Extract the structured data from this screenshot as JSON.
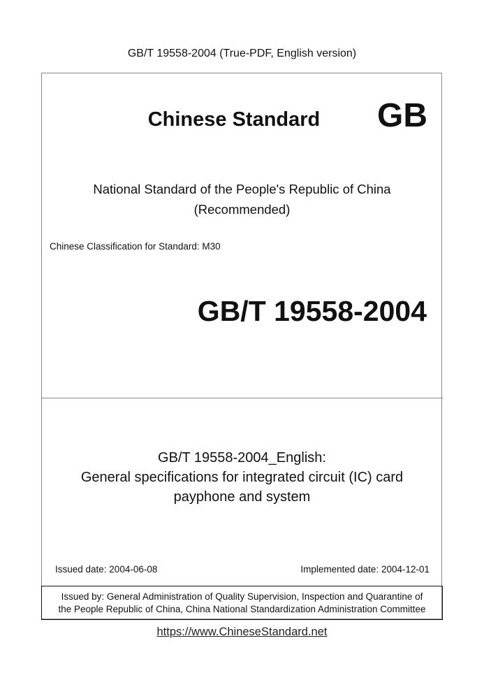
{
  "header": "GB/T 19558-2004 (True-PDF, English version)",
  "cover": {
    "heading": "Chinese Standard",
    "mark": "GB",
    "national_line1": "National Standard of the People's Republic of China",
    "national_line2": "(Recommended)",
    "classification": "Chinese Classification for Standard: M30",
    "code": "GB/T 19558-2004"
  },
  "title": {
    "line1": "GB/T 19558-2004_English:",
    "line2": "General specifications for integrated circuit (IC) card",
    "line3": "payphone and system"
  },
  "dates": {
    "issued": "Issued date: 2004-06-08",
    "implemented": "Implemented date: 2004-12-01"
  },
  "issuer": {
    "line1": "Issued by: General Administration of Quality Supervision, Inspection and Quarantine of",
    "line2": "the People Republic of China, China National Standardization Administration Committee"
  },
  "footer": {
    "url": "https://www.ChineseStandard.net"
  }
}
